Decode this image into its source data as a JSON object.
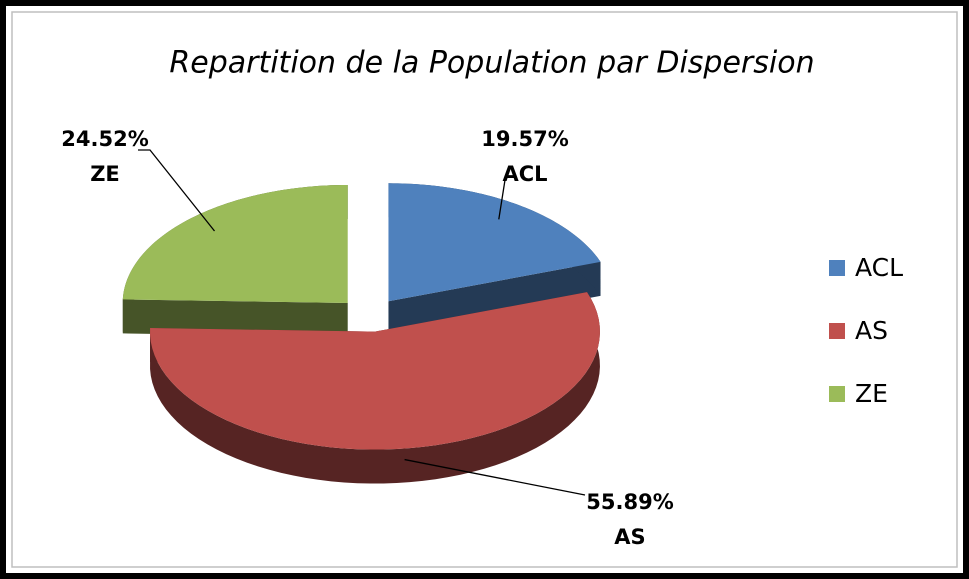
{
  "chart_data": {
    "type": "pie",
    "title": "Repartition de la Population par Dispersion",
    "categories": [
      "ACL",
      "AS",
      "ZE"
    ],
    "values": [
      19.57,
      55.89,
      24.52
    ],
    "value_labels": [
      "19.57%",
      "55.89%",
      "24.52%"
    ],
    "colors": [
      "#4f81bd",
      "#c0504d",
      "#9bbb59"
    ],
    "legend": "right"
  }
}
